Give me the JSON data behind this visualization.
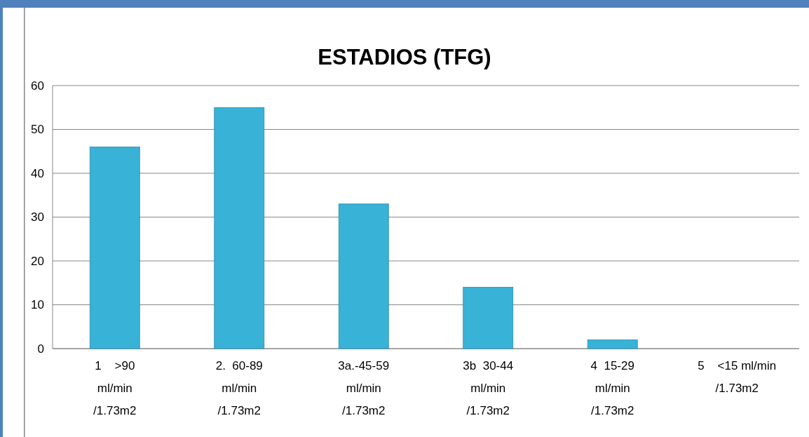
{
  "chart_data": {
    "type": "bar",
    "title": "ESTADIOS (TFG)",
    "categories": [
      "1    >90\nml/min\n/1.73m2",
      "2.  60-89\nml/min\n/1.73m2",
      "3a.-45-59\nml/min\n/1.73m2",
      "3b  30-44\nml/min\n/1.73m2",
      "4  15-29\nml/min\n/1.73m2",
      "5    <15 ml/min\n/1.73m2"
    ],
    "values": [
      46,
      55,
      33,
      14,
      2,
      0
    ],
    "color": "#38b2d6",
    "ylim": [
      0,
      60
    ],
    "yticks": [
      0,
      10,
      20,
      30,
      40,
      50,
      60
    ],
    "grid": "y"
  }
}
